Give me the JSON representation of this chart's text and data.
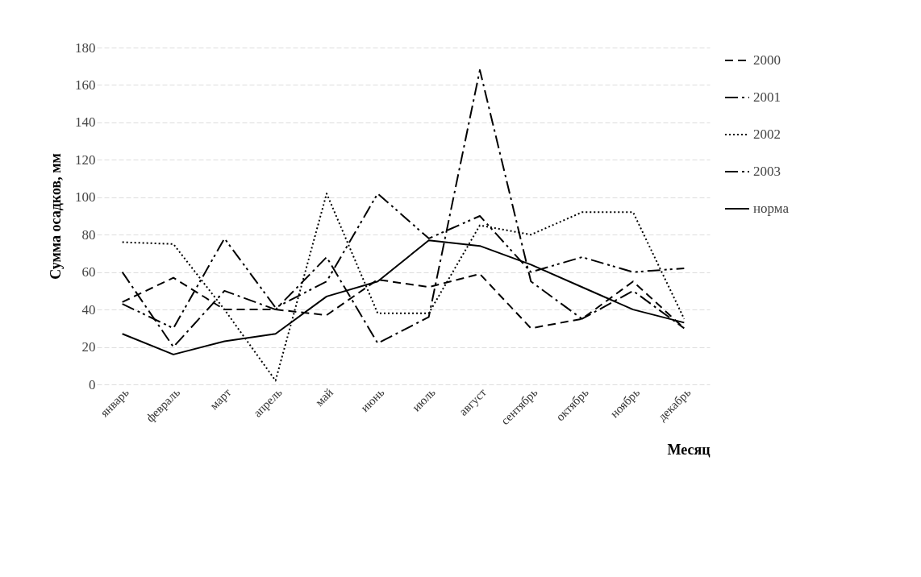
{
  "chart_data": {
    "type": "line",
    "xlabel": "Месяц",
    "ylabel": "Сумма осадков, мм",
    "categories": [
      "январь",
      "февраль",
      "март",
      "апрель",
      "май",
      "июнь",
      "июль",
      "август",
      "сентябрь",
      "октябрь",
      "ноябрь",
      "декабрь"
    ],
    "series": [
      {
        "name": "2000",
        "color": "#000000",
        "line_style": "dashed",
        "values": [
          44,
          57,
          40,
          40,
          37,
          56,
          52,
          59,
          30,
          35,
          55,
          30
        ]
      },
      {
        "name": "2001",
        "color": "#000000",
        "line_style": "dashed",
        "values": [
          60,
          20,
          50,
          40,
          68,
          22,
          36,
          168,
          55,
          35,
          50,
          30
        ]
      },
      {
        "name": "2002",
        "color": "#000000",
        "line_style": "dotted",
        "values": [
          76,
          75,
          40,
          2,
          102,
          38,
          38,
          85,
          80,
          92,
          92,
          35
        ]
      },
      {
        "name": "2003",
        "color": "#000000",
        "line_style": "dashed",
        "values": [
          43,
          30,
          78,
          41,
          55,
          102,
          78,
          90,
          60,
          68,
          60,
          62
        ]
      },
      {
        "name": "норма",
        "color": "#000000",
        "line_style": "solid",
        "values": [
          27,
          16,
          23,
          27,
          47,
          55,
          77,
          74,
          64,
          52,
          40,
          33
        ]
      }
    ],
    "ylim": [
      0,
      180
    ],
    "yticks": [
      0,
      20,
      40,
      60,
      80,
      100,
      120,
      140,
      160,
      180
    ],
    "grid": "y",
    "legend": "right",
    "marker": "none"
  }
}
